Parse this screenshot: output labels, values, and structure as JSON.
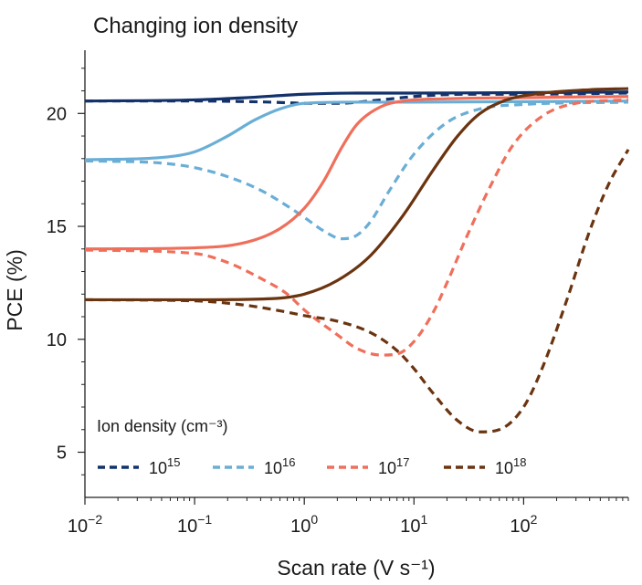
{
  "chart_data": {
    "type": "line",
    "title": "Changing ion density",
    "xlabel": "Scan rate (V s⁻¹)",
    "ylabel": "PCE (%)",
    "xscale": "log",
    "xlim": [
      0.01,
      900
    ],
    "ylim": [
      3.0,
      22.8
    ],
    "x_ticks": [
      {
        "value": 0.01,
        "base": "10",
        "exp": "−2"
      },
      {
        "value": 0.1,
        "base": "10",
        "exp": "−1"
      },
      {
        "value": 1,
        "base": "10",
        "exp": "0"
      },
      {
        "value": 10,
        "base": "10",
        "exp": "1"
      },
      {
        "value": 100,
        "base": "10",
        "exp": "2"
      }
    ],
    "y_ticks": [
      {
        "value": 5,
        "label": "5"
      },
      {
        "value": 10,
        "label": "10"
      },
      {
        "value": 15,
        "label": "15"
      },
      {
        "value": 20,
        "label": "20"
      }
    ],
    "legend": {
      "title": "Ion density (cm⁻³)",
      "placement": "bottom-left",
      "entries": [
        {
          "base": "10",
          "exp": "15",
          "color": "#13326b"
        },
        {
          "base": "10",
          "exp": "16",
          "color": "#6aaed6"
        },
        {
          "base": "10",
          "exp": "17",
          "color": "#ef6f5b"
        },
        {
          "base": "10",
          "exp": "18",
          "color": "#6b3410"
        }
      ]
    },
    "series": [
      {
        "name": "10^15 solid",
        "density": "10^15",
        "style": "solid",
        "color": "#13326b",
        "points": [
          [
            0.01,
            20.55
          ],
          [
            0.1,
            20.6
          ],
          [
            0.3,
            20.7
          ],
          [
            1,
            20.85
          ],
          [
            3,
            20.9
          ],
          [
            10,
            20.9
          ],
          [
            100,
            20.92
          ],
          [
            900,
            20.95
          ]
        ]
      },
      {
        "name": "10^15 dashed",
        "density": "10^15",
        "style": "dashed",
        "color": "#13326b",
        "points": [
          [
            0.01,
            20.55
          ],
          [
            0.1,
            20.55
          ],
          [
            0.5,
            20.5
          ],
          [
            1,
            20.45
          ],
          [
            2,
            20.45
          ],
          [
            5,
            20.6
          ],
          [
            10,
            20.75
          ],
          [
            30,
            20.85
          ],
          [
            100,
            20.85
          ],
          [
            900,
            20.9
          ]
        ]
      },
      {
        "name": "10^16 solid",
        "density": "10^16",
        "style": "solid",
        "color": "#6aaed6",
        "points": [
          [
            0.01,
            17.95
          ],
          [
            0.05,
            18.05
          ],
          [
            0.1,
            18.3
          ],
          [
            0.2,
            19.0
          ],
          [
            0.35,
            19.7
          ],
          [
            0.6,
            20.2
          ],
          [
            1,
            20.45
          ],
          [
            3,
            20.5
          ],
          [
            10,
            20.5
          ],
          [
            900,
            20.55
          ]
        ]
      },
      {
        "name": "10^16 dashed",
        "density": "10^16",
        "style": "dashed",
        "color": "#6aaed6",
        "points": [
          [
            0.01,
            17.9
          ],
          [
            0.05,
            17.8
          ],
          [
            0.1,
            17.6
          ],
          [
            0.2,
            17.2
          ],
          [
            0.4,
            16.6
          ],
          [
            0.7,
            15.9
          ],
          [
            1,
            15.4
          ],
          [
            1.5,
            14.8
          ],
          [
            2.2,
            14.45
          ],
          [
            3,
            14.6
          ],
          [
            4,
            15.2
          ],
          [
            6,
            16.6
          ],
          [
            10,
            18.2
          ],
          [
            20,
            19.6
          ],
          [
            40,
            20.2
          ],
          [
            100,
            20.4
          ],
          [
            900,
            20.5
          ]
        ]
      },
      {
        "name": "10^17 solid",
        "density": "10^17",
        "style": "solid",
        "color": "#ef6f5b",
        "points": [
          [
            0.01,
            14.0
          ],
          [
            0.1,
            14.05
          ],
          [
            0.3,
            14.3
          ],
          [
            0.6,
            14.9
          ],
          [
            1,
            15.8
          ],
          [
            1.5,
            17.0
          ],
          [
            2.2,
            18.5
          ],
          [
            3,
            19.5
          ],
          [
            5,
            20.3
          ],
          [
            8,
            20.55
          ],
          [
            20,
            20.65
          ],
          [
            100,
            20.7
          ],
          [
            900,
            20.75
          ]
        ]
      },
      {
        "name": "10^17 dashed",
        "density": "10^17",
        "style": "dashed",
        "color": "#ef6f5b",
        "points": [
          [
            0.01,
            13.95
          ],
          [
            0.1,
            13.8
          ],
          [
            0.2,
            13.4
          ],
          [
            0.4,
            12.7
          ],
          [
            0.7,
            12.0
          ],
          [
            1,
            11.3
          ],
          [
            2,
            10.2
          ],
          [
            3,
            9.6
          ],
          [
            5,
            9.3
          ],
          [
            7,
            9.35
          ],
          [
            10,
            9.9
          ],
          [
            15,
            11.2
          ],
          [
            20,
            12.5
          ],
          [
            30,
            14.5
          ],
          [
            50,
            16.8
          ],
          [
            80,
            18.6
          ],
          [
            150,
            19.9
          ],
          [
            300,
            20.45
          ],
          [
            900,
            20.6
          ]
        ]
      },
      {
        "name": "10^18 solid",
        "density": "10^18",
        "style": "solid",
        "color": "#6b3410",
        "points": [
          [
            0.01,
            11.75
          ],
          [
            0.1,
            11.75
          ],
          [
            0.5,
            11.8
          ],
          [
            1,
            12.0
          ],
          [
            2,
            12.6
          ],
          [
            4,
            13.7
          ],
          [
            8,
            15.5
          ],
          [
            15,
            17.5
          ],
          [
            25,
            19.0
          ],
          [
            40,
            20.0
          ],
          [
            70,
            20.6
          ],
          [
            150,
            20.9
          ],
          [
            400,
            21.05
          ],
          [
            900,
            21.1
          ]
        ]
      },
      {
        "name": "10^18 dashed",
        "density": "10^18",
        "style": "dashed",
        "color": "#6b3410",
        "points": [
          [
            0.01,
            11.75
          ],
          [
            0.1,
            11.7
          ],
          [
            0.3,
            11.5
          ],
          [
            0.7,
            11.2
          ],
          [
            1,
            11.05
          ],
          [
            2,
            10.8
          ],
          [
            4,
            10.3
          ],
          [
            7,
            9.5
          ],
          [
            10,
            8.7
          ],
          [
            15,
            7.6
          ],
          [
            25,
            6.4
          ],
          [
            40,
            5.9
          ],
          [
            60,
            6.0
          ],
          [
            100,
            7.0
          ],
          [
            150,
            8.8
          ],
          [
            250,
            11.8
          ],
          [
            400,
            14.8
          ],
          [
            600,
            16.9
          ],
          [
            900,
            18.4
          ]
        ]
      }
    ]
  }
}
